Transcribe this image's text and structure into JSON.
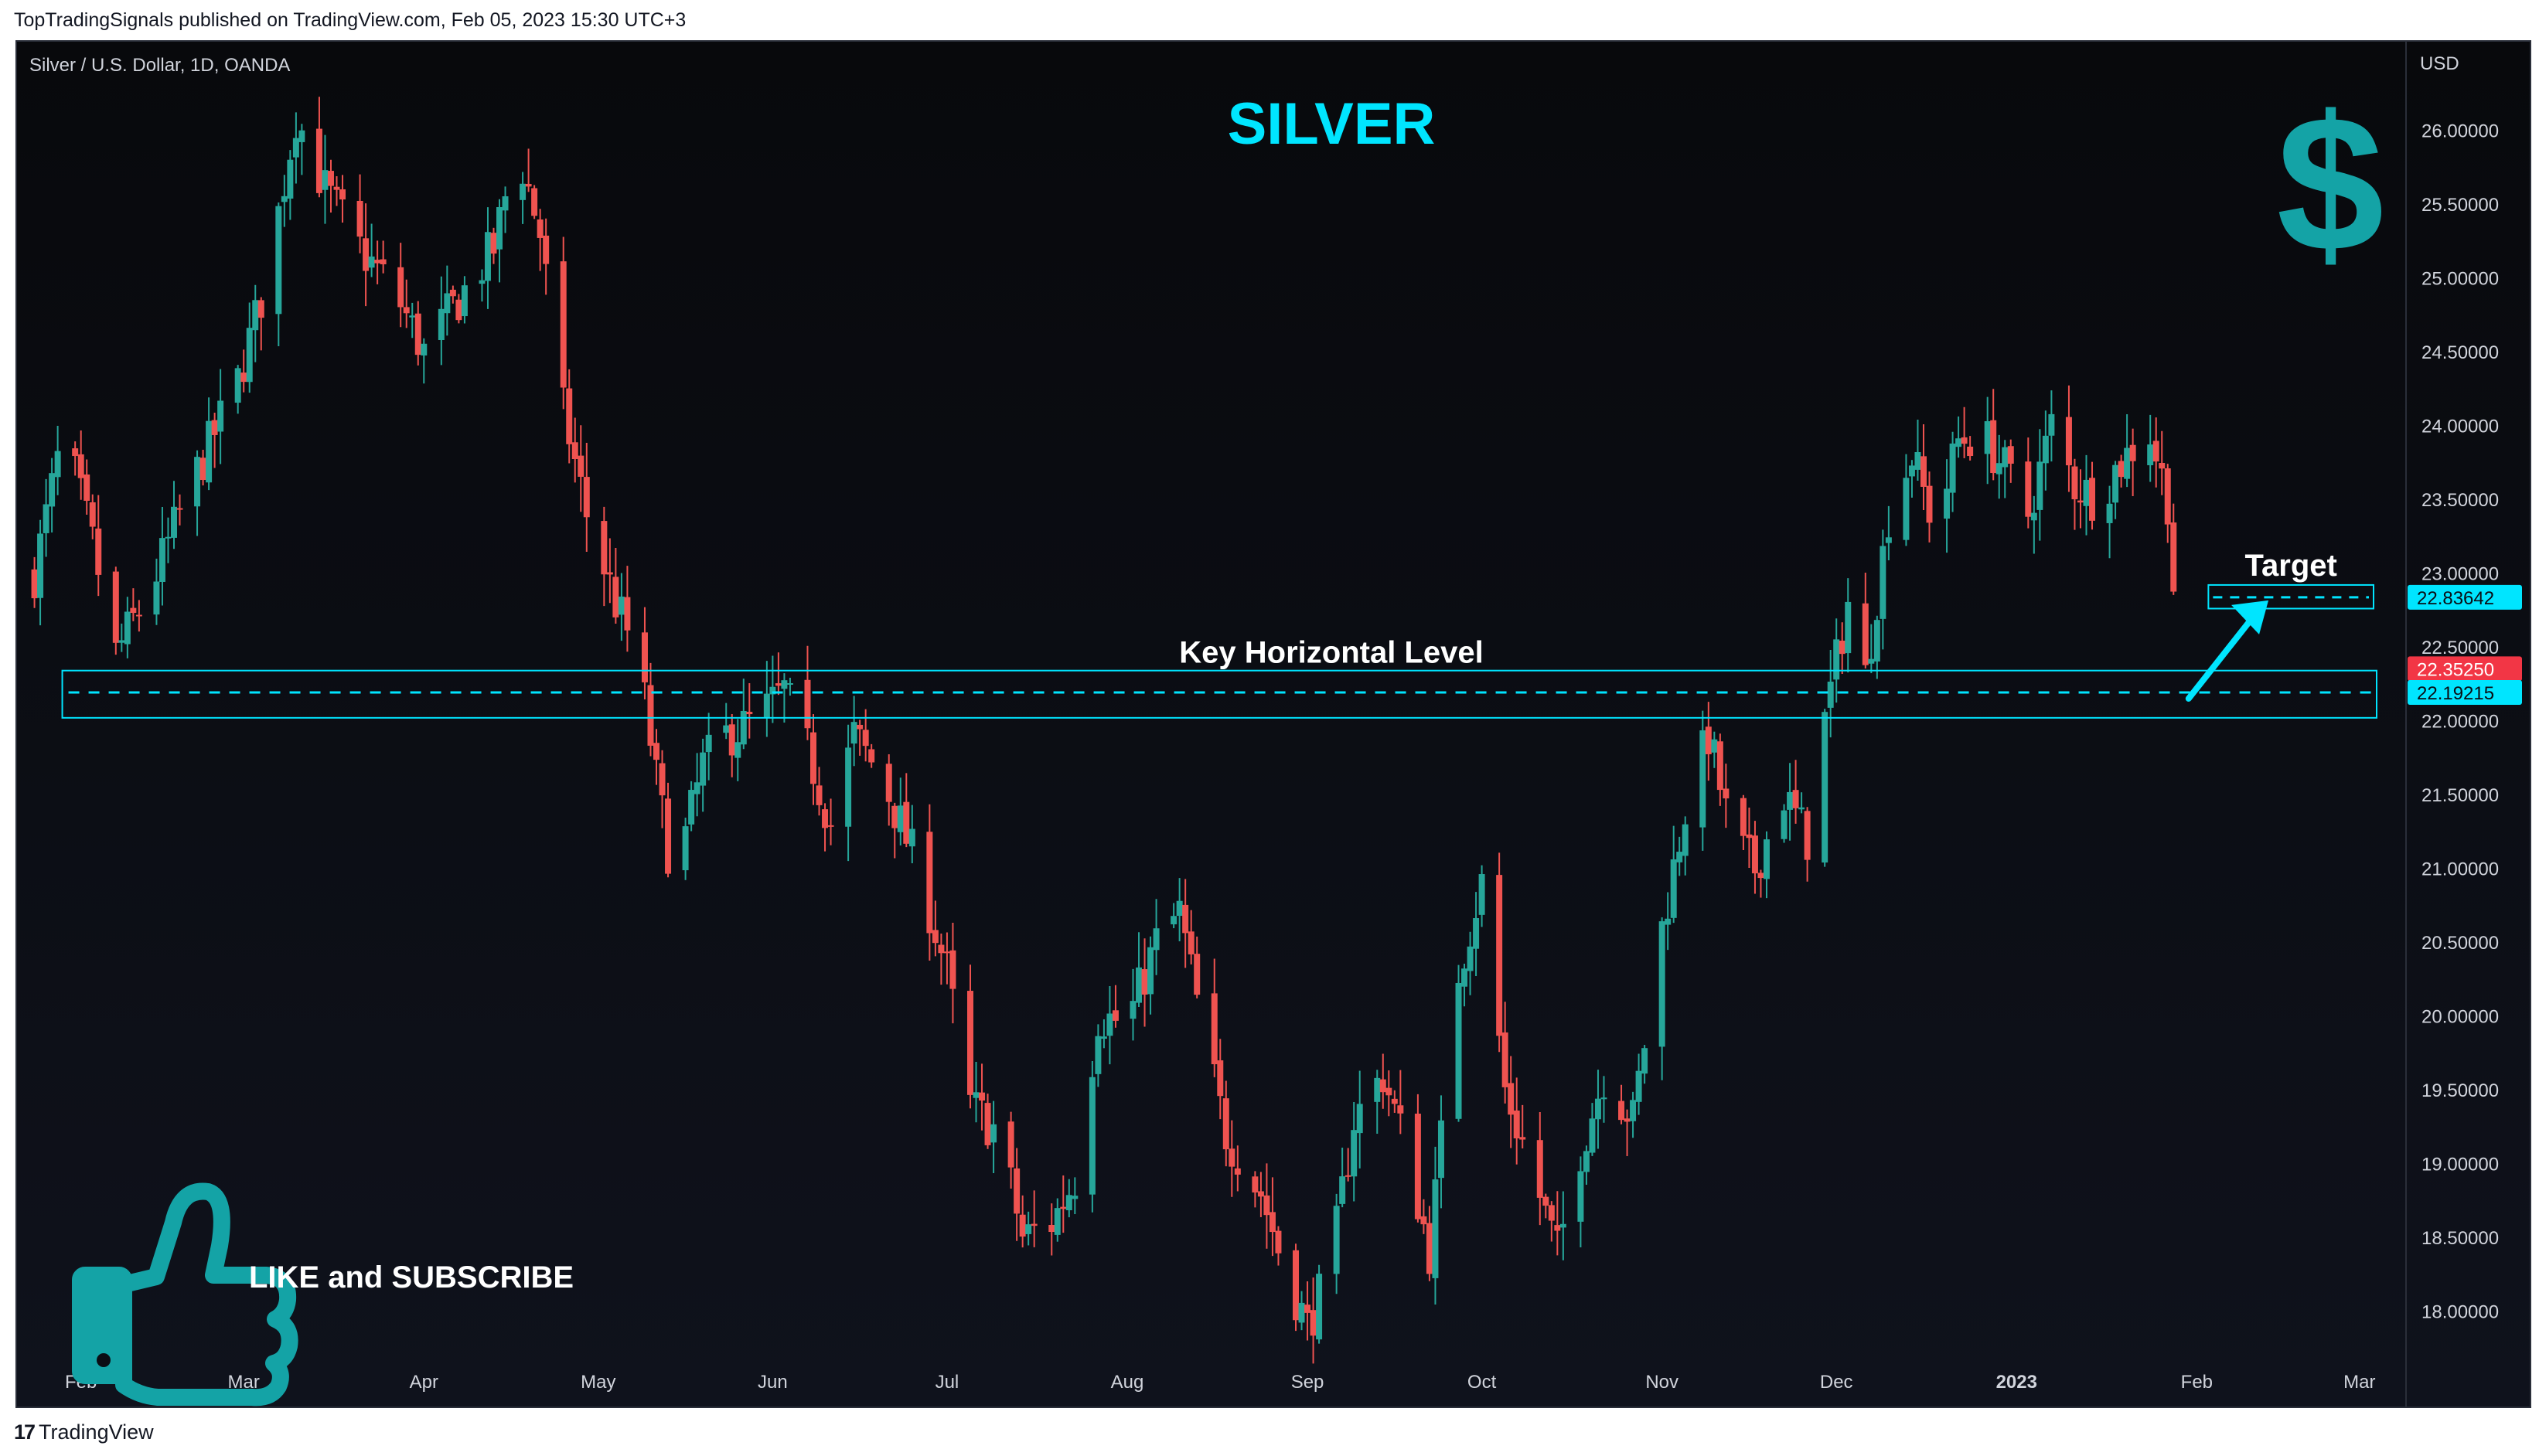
{
  "header": {
    "published": "TopTradingSignals published on TradingView.com, Feb 05, 2023 15:30 UTC+3"
  },
  "footer": {
    "brand": "TradingView"
  },
  "chart_data": {
    "type": "candlestick",
    "symbol_label": "Silver / U.S. Dollar, 1D, OANDA",
    "title": "SILVER",
    "currency": "USD",
    "y_ticks": [
      "26.00000",
      "25.50000",
      "25.00000",
      "24.50000",
      "24.00000",
      "23.50000",
      "23.00000",
      "22.50000",
      "22.00000",
      "21.50000",
      "21.00000",
      "20.50000",
      "20.00000",
      "19.50000",
      "19.00000",
      "18.50000",
      "18.00000"
    ],
    "ylim": [
      17.7,
      26.6
    ],
    "x_ticks": [
      "Feb",
      "Mar",
      "Apr",
      "May",
      "Jun",
      "Jul",
      "Aug",
      "Sep",
      "Oct",
      "Nov",
      "Dec",
      "2023",
      "Feb",
      "Mar"
    ],
    "x_tick_days": [
      8,
      36,
      67,
      97,
      127,
      157,
      188,
      219,
      249,
      280,
      310,
      341,
      372,
      400
    ],
    "xlim": [
      -3,
      408
    ],
    "series": [
      {
        "day": 0,
        "c": 23.0
      },
      {
        "day": 5,
        "c": 23.95
      },
      {
        "day": 10,
        "c": 23.2
      },
      {
        "day": 14,
        "c": 22.45
      },
      {
        "day": 20,
        "c": 22.9
      },
      {
        "day": 27,
        "c": 23.6
      },
      {
        "day": 35,
        "c": 24.3
      },
      {
        "day": 40,
        "c": 25.0
      },
      {
        "day": 45,
        "c": 26.1
      },
      {
        "day": 50,
        "c": 25.6
      },
      {
        "day": 56,
        "c": 25.2
      },
      {
        "day": 62,
        "c": 24.9
      },
      {
        "day": 67,
        "c": 24.5
      },
      {
        "day": 72,
        "c": 24.8
      },
      {
        "day": 79,
        "c": 25.2
      },
      {
        "day": 83,
        "c": 25.9
      },
      {
        "day": 87,
        "c": 25.3
      },
      {
        "day": 91,
        "c": 24.1
      },
      {
        "day": 95,
        "c": 23.4
      },
      {
        "day": 100,
        "c": 22.8
      },
      {
        "day": 104,
        "c": 22.4
      },
      {
        "day": 107,
        "c": 21.6
      },
      {
        "day": 110,
        "c": 20.9
      },
      {
        "day": 115,
        "c": 21.7
      },
      {
        "day": 119,
        "c": 21.9
      },
      {
        "day": 124,
        "c": 22.0
      },
      {
        "day": 129,
        "c": 22.2
      },
      {
        "day": 133,
        "c": 21.8
      },
      {
        "day": 137,
        "c": 21.3
      },
      {
        "day": 141,
        "c": 21.9
      },
      {
        "day": 146,
        "c": 21.6
      },
      {
        "day": 152,
        "c": 21.0
      },
      {
        "day": 157,
        "c": 20.3
      },
      {
        "day": 161,
        "c": 19.4
      },
      {
        "day": 166,
        "c": 19.2
      },
      {
        "day": 170,
        "c": 18.5
      },
      {
        "day": 175,
        "c": 18.6
      },
      {
        "day": 179,
        "c": 18.9
      },
      {
        "day": 183,
        "c": 20.0
      },
      {
        "day": 188,
        "c": 19.95
      },
      {
        "day": 193,
        "c": 20.5
      },
      {
        "day": 197,
        "c": 20.7
      },
      {
        "day": 201,
        "c": 19.9
      },
      {
        "day": 205,
        "c": 19.2
      },
      {
        "day": 211,
        "c": 18.8
      },
      {
        "day": 215,
        "c": 18.3
      },
      {
        "day": 219,
        "c": 17.9
      },
      {
        "day": 223,
        "c": 18.3
      },
      {
        "day": 227,
        "c": 19.3
      },
      {
        "day": 232,
        "c": 19.6
      },
      {
        "day": 236,
        "c": 19.1
      },
      {
        "day": 240,
        "c": 18.4
      },
      {
        "day": 245,
        "c": 20.3
      },
      {
        "day": 249,
        "c": 20.9
      },
      {
        "day": 253,
        "c": 19.5
      },
      {
        "day": 258,
        "c": 18.9
      },
      {
        "day": 262,
        "c": 18.4
      },
      {
        "day": 266,
        "c": 19.1
      },
      {
        "day": 270,
        "c": 19.6
      },
      {
        "day": 275,
        "c": 19.3
      },
      {
        "day": 280,
        "c": 20.6
      },
      {
        "day": 284,
        "c": 21.4
      },
      {
        "day": 288,
        "c": 21.9
      },
      {
        "day": 292,
        "c": 21.2
      },
      {
        "day": 296,
        "c": 21.0
      },
      {
        "day": 301,
        "c": 21.5
      },
      {
        "day": 305,
        "c": 21.2
      },
      {
        "day": 308,
        "c": 22.0
      },
      {
        "day": 312,
        "c": 22.8
      },
      {
        "day": 315,
        "c": 22.3
      },
      {
        "day": 319,
        "c": 23.4
      },
      {
        "day": 323,
        "c": 23.8
      },
      {
        "day": 327,
        "c": 23.3
      },
      {
        "day": 331,
        "c": 23.9
      },
      {
        "day": 335,
        "c": 23.95
      },
      {
        "day": 339,
        "c": 23.7
      },
      {
        "day": 343,
        "c": 23.4
      },
      {
        "day": 347,
        "c": 24.0
      },
      {
        "day": 351,
        "c": 23.6
      },
      {
        "day": 355,
        "c": 23.5
      },
      {
        "day": 358,
        "c": 23.7
      },
      {
        "day": 361,
        "c": 23.85
      },
      {
        "day": 364,
        "c": 23.95
      },
      {
        "day": 367,
        "c": 23.5
      },
      {
        "day": 369,
        "c": 22.35
      }
    ],
    "annotations": {
      "key_level_label": "Key Horizontal Level",
      "key_level_box": [
        22.02,
        22.34
      ],
      "key_level_line": 22.19215,
      "target_label": "Target",
      "target_box": [
        22.76,
        22.92
      ],
      "target_line": 22.83642,
      "cta_text": "LIKE and SUBSCRIBE"
    },
    "price_badges": [
      {
        "label": "22.83642",
        "value": 22.83642,
        "color": "#00e5ff"
      },
      {
        "label": "22.35250",
        "value": 22.3525,
        "color": "#f23645"
      },
      {
        "label": "22.19215",
        "value": 22.19215,
        "color": "#00e5ff"
      }
    ],
    "colors": {
      "up": "#26a69a",
      "down": "#ef5350",
      "accent": "#00e5ff",
      "logo_teal": "#14a3a6",
      "text": "#d1d4dc"
    }
  }
}
